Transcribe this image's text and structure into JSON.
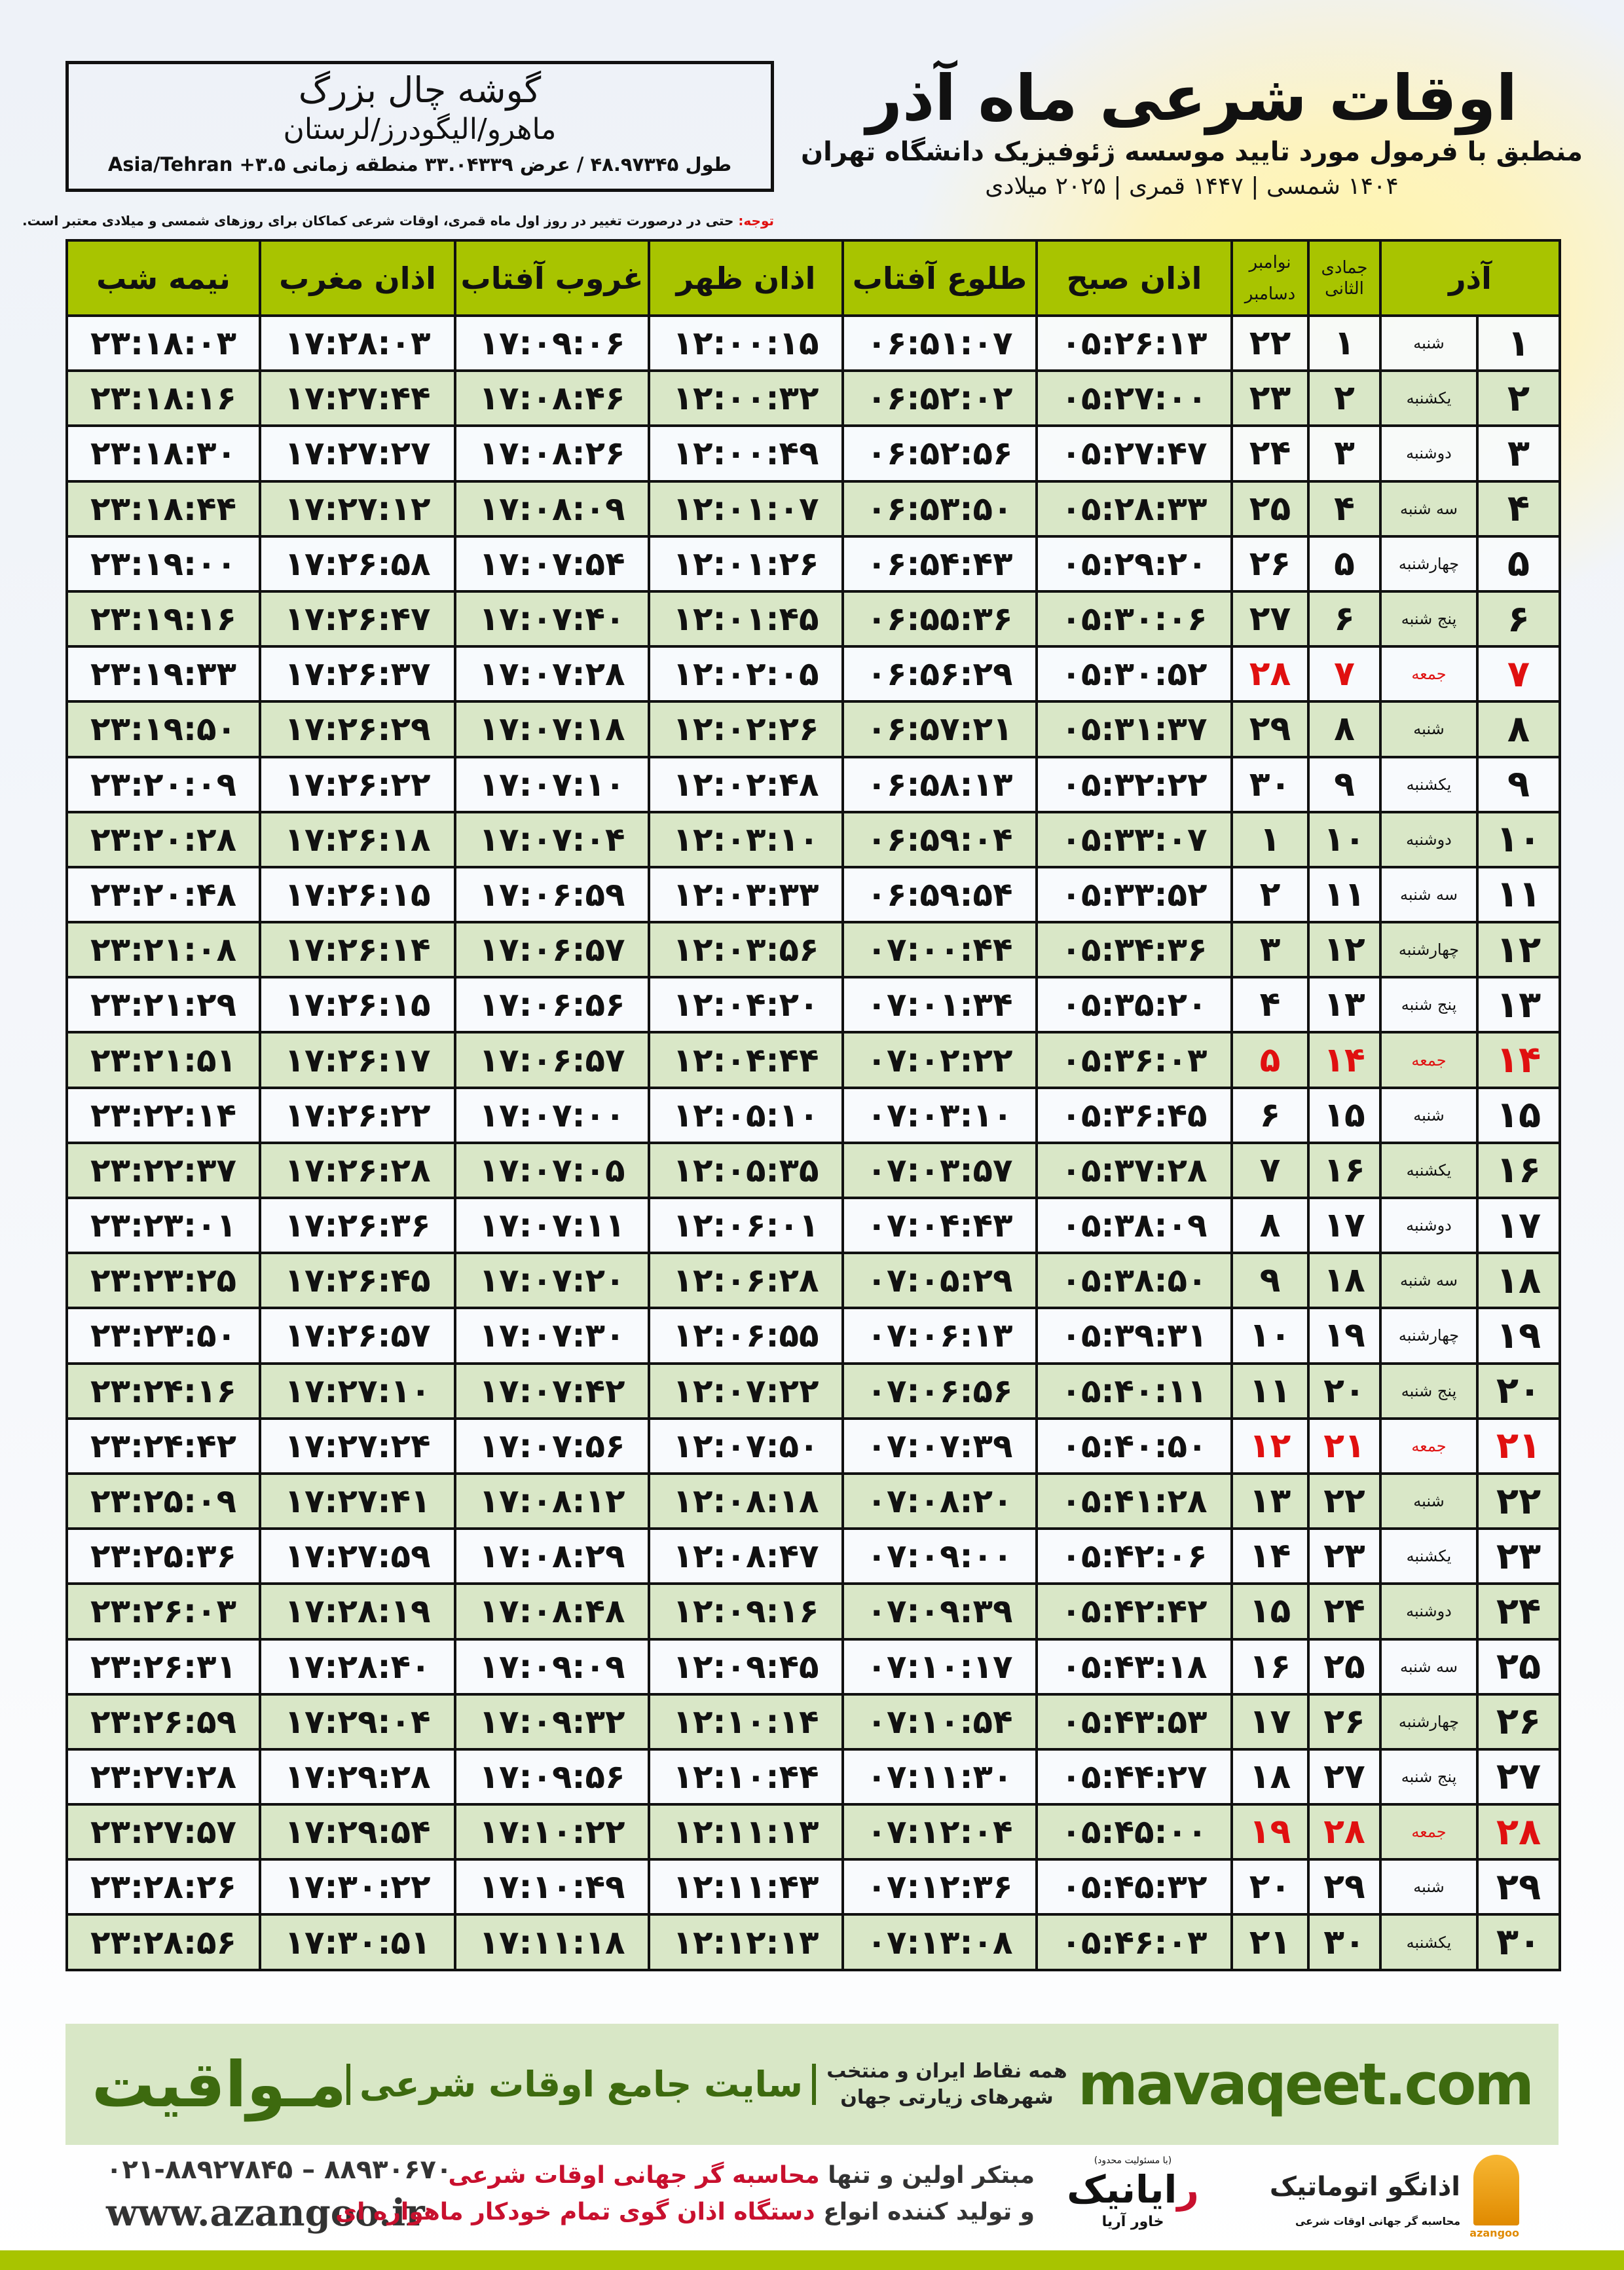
{
  "location": {
    "name": "گوشه چال بزرگ",
    "path": "ماهرو/الیگودرز/لرستان",
    "coords": "طول ۴۸.۹۷۳۴۵ / عرض ۳۳.۰۴۳۳۹ منطقه زمانی ۳.۵+ Asia/Tehran"
  },
  "header": {
    "title": "اوقات شرعی ماه آذر",
    "subtitle": "منطبق با فرمول مورد تایید موسسه ژئوفیزیک دانشگاه تهران",
    "years": "۱۴۰۴ شمسی | ۱۴۴۷ قمری | ۲۰۲۵ میلادی"
  },
  "note": {
    "label": "توجه:",
    "text": " حتی در درصورت تغییر در روز اول ماه قمری، اوقات شرعی کماکان برای روزهای شمسی و میلادی معتبر است."
  },
  "columns": {
    "month": "آذر",
    "hijri": "جمادی الثانی",
    "greg_top": "نوامبر",
    "greg_bottom": "دسامبر",
    "fajr": "اذان صبح",
    "sunrise": "طلوع آفتاب",
    "dhuhr": "اذان ظهر",
    "sunset": "غروب آفتاب",
    "maghrib": "اذان مغرب",
    "midnight": "نیمه شب"
  },
  "colors": {
    "header_green": "#a8c400",
    "row_green": "#d9e7c7",
    "holiday_red": "#e01010",
    "brand_green": "#3d6a0f"
  },
  "rows": [
    {
      "day": "۱",
      "weekday": "شنبه",
      "hijri": "۱",
      "greg": "۲۲",
      "fajr": "۰۵:۲۶:۱۳",
      "sunrise": "۰۶:۵۱:۰۷",
      "dhuhr": "۱۲:۰۰:۱۵",
      "sunset": "۱۷:۰۹:۰۶",
      "maghrib": "۱۷:۲۸:۰۳",
      "midnight": "۲۳:۱۸:۰۳"
    },
    {
      "day": "۲",
      "weekday": "یکشنبه",
      "hijri": "۲",
      "greg": "۲۳",
      "fajr": "۰۵:۲۷:۰۰",
      "sunrise": "۰۶:۵۲:۰۲",
      "dhuhr": "۱۲:۰۰:۳۲",
      "sunset": "۱۷:۰۸:۴۶",
      "maghrib": "۱۷:۲۷:۴۴",
      "midnight": "۲۳:۱۸:۱۶"
    },
    {
      "day": "۳",
      "weekday": "دوشنبه",
      "hijri": "۳",
      "greg": "۲۴",
      "fajr": "۰۵:۲۷:۴۷",
      "sunrise": "۰۶:۵۲:۵۶",
      "dhuhr": "۱۲:۰۰:۴۹",
      "sunset": "۱۷:۰۸:۲۶",
      "maghrib": "۱۷:۲۷:۲۷",
      "midnight": "۲۳:۱۸:۳۰"
    },
    {
      "day": "۴",
      "weekday": "سه شنبه",
      "hijri": "۴",
      "greg": "۲۵",
      "fajr": "۰۵:۲۸:۳۳",
      "sunrise": "۰۶:۵۳:۵۰",
      "dhuhr": "۱۲:۰۱:۰۷",
      "sunset": "۱۷:۰۸:۰۹",
      "maghrib": "۱۷:۲۷:۱۲",
      "midnight": "۲۳:۱۸:۴۴"
    },
    {
      "day": "۵",
      "weekday": "چهارشنبه",
      "hijri": "۵",
      "greg": "۲۶",
      "fajr": "۰۵:۲۹:۲۰",
      "sunrise": "۰۶:۵۴:۴۳",
      "dhuhr": "۱۲:۰۱:۲۶",
      "sunset": "۱۷:۰۷:۵۴",
      "maghrib": "۱۷:۲۶:۵۸",
      "midnight": "۲۳:۱۹:۰۰"
    },
    {
      "day": "۶",
      "weekday": "پنج شنبه",
      "hijri": "۶",
      "greg": "۲۷",
      "fajr": "۰۵:۳۰:۰۶",
      "sunrise": "۰۶:۵۵:۳۶",
      "dhuhr": "۱۲:۰۱:۴۵",
      "sunset": "۱۷:۰۷:۴۰",
      "maghrib": "۱۷:۲۶:۴۷",
      "midnight": "۲۳:۱۹:۱۶"
    },
    {
      "day": "۷",
      "weekday": "جمعه",
      "hijri": "۷",
      "greg": "۲۸",
      "fajr": "۰۵:۳۰:۵۲",
      "sunrise": "۰۶:۵۶:۲۹",
      "dhuhr": "۱۲:۰۲:۰۵",
      "sunset": "۱۷:۰۷:۲۸",
      "maghrib": "۱۷:۲۶:۳۷",
      "midnight": "۲۳:۱۹:۳۳",
      "holiday": true
    },
    {
      "day": "۸",
      "weekday": "شنبه",
      "hijri": "۸",
      "greg": "۲۹",
      "fajr": "۰۵:۳۱:۳۷",
      "sunrise": "۰۶:۵۷:۲۱",
      "dhuhr": "۱۲:۰۲:۲۶",
      "sunset": "۱۷:۰۷:۱۸",
      "maghrib": "۱۷:۲۶:۲۹",
      "midnight": "۲۳:۱۹:۵۰"
    },
    {
      "day": "۹",
      "weekday": "یکشنبه",
      "hijri": "۹",
      "greg": "۳۰",
      "fajr": "۰۵:۳۲:۲۲",
      "sunrise": "۰۶:۵۸:۱۳",
      "dhuhr": "۱۲:۰۲:۴۸",
      "sunset": "۱۷:۰۷:۱۰",
      "maghrib": "۱۷:۲۶:۲۲",
      "midnight": "۲۳:۲۰:۰۹"
    },
    {
      "day": "۱۰",
      "weekday": "دوشنبه",
      "hijri": "۱۰",
      "greg": "۱",
      "fajr": "۰۵:۳۳:۰۷",
      "sunrise": "۰۶:۵۹:۰۴",
      "dhuhr": "۱۲:۰۳:۱۰",
      "sunset": "۱۷:۰۷:۰۴",
      "maghrib": "۱۷:۲۶:۱۸",
      "midnight": "۲۳:۲۰:۲۸"
    },
    {
      "day": "۱۱",
      "weekday": "سه شنبه",
      "hijri": "۱۱",
      "greg": "۲",
      "fajr": "۰۵:۳۳:۵۲",
      "sunrise": "۰۶:۵۹:۵۴",
      "dhuhr": "۱۲:۰۳:۳۳",
      "sunset": "۱۷:۰۶:۵۹",
      "maghrib": "۱۷:۲۶:۱۵",
      "midnight": "۲۳:۲۰:۴۸"
    },
    {
      "day": "۱۲",
      "weekday": "چهارشنبه",
      "hijri": "۱۲",
      "greg": "۳",
      "fajr": "۰۵:۳۴:۳۶",
      "sunrise": "۰۷:۰۰:۴۴",
      "dhuhr": "۱۲:۰۳:۵۶",
      "sunset": "۱۷:۰۶:۵۷",
      "maghrib": "۱۷:۲۶:۱۴",
      "midnight": "۲۳:۲۱:۰۸"
    },
    {
      "day": "۱۳",
      "weekday": "پنج شنبه",
      "hijri": "۱۳",
      "greg": "۴",
      "fajr": "۰۵:۳۵:۲۰",
      "sunrise": "۰۷:۰۱:۳۴",
      "dhuhr": "۱۲:۰۴:۲۰",
      "sunset": "۱۷:۰۶:۵۶",
      "maghrib": "۱۷:۲۶:۱۵",
      "midnight": "۲۳:۲۱:۲۹"
    },
    {
      "day": "۱۴",
      "weekday": "جمعه",
      "hijri": "۱۴",
      "greg": "۵",
      "fajr": "۰۵:۳۶:۰۳",
      "sunrise": "۰۷:۰۲:۲۲",
      "dhuhr": "۱۲:۰۴:۴۴",
      "sunset": "۱۷:۰۶:۵۷",
      "maghrib": "۱۷:۲۶:۱۷",
      "midnight": "۲۳:۲۱:۵۱",
      "holiday": true
    },
    {
      "day": "۱۵",
      "weekday": "شنبه",
      "hijri": "۱۵",
      "greg": "۶",
      "fajr": "۰۵:۳۶:۴۵",
      "sunrise": "۰۷:۰۳:۱۰",
      "dhuhr": "۱۲:۰۵:۱۰",
      "sunset": "۱۷:۰۷:۰۰",
      "maghrib": "۱۷:۲۶:۲۲",
      "midnight": "۲۳:۲۲:۱۴"
    },
    {
      "day": "۱۶",
      "weekday": "یکشنبه",
      "hijri": "۱۶",
      "greg": "۷",
      "fajr": "۰۵:۳۷:۲۸",
      "sunrise": "۰۷:۰۳:۵۷",
      "dhuhr": "۱۲:۰۵:۳۵",
      "sunset": "۱۷:۰۷:۰۵",
      "maghrib": "۱۷:۲۶:۲۸",
      "midnight": "۲۳:۲۲:۳۷"
    },
    {
      "day": "۱۷",
      "weekday": "دوشنبه",
      "hijri": "۱۷",
      "greg": "۸",
      "fajr": "۰۵:۳۸:۰۹",
      "sunrise": "۰۷:۰۴:۴۳",
      "dhuhr": "۱۲:۰۶:۰۱",
      "sunset": "۱۷:۰۷:۱۱",
      "maghrib": "۱۷:۲۶:۳۶",
      "midnight": "۲۳:۲۳:۰۱"
    },
    {
      "day": "۱۸",
      "weekday": "سه شنبه",
      "hijri": "۱۸",
      "greg": "۹",
      "fajr": "۰۵:۳۸:۵۰",
      "sunrise": "۰۷:۰۵:۲۹",
      "dhuhr": "۱۲:۰۶:۲۸",
      "sunset": "۱۷:۰۷:۲۰",
      "maghrib": "۱۷:۲۶:۴۵",
      "midnight": "۲۳:۲۳:۲۵"
    },
    {
      "day": "۱۹",
      "weekday": "چهارشنبه",
      "hijri": "۱۹",
      "greg": "۱۰",
      "fajr": "۰۵:۳۹:۳۱",
      "sunrise": "۰۷:۰۶:۱۳",
      "dhuhr": "۱۲:۰۶:۵۵",
      "sunset": "۱۷:۰۷:۳۰",
      "maghrib": "۱۷:۲۶:۵۷",
      "midnight": "۲۳:۲۳:۵۰"
    },
    {
      "day": "۲۰",
      "weekday": "پنج شنبه",
      "hijri": "۲۰",
      "greg": "۱۱",
      "fajr": "۰۵:۴۰:۱۱",
      "sunrise": "۰۷:۰۶:۵۶",
      "dhuhr": "۱۲:۰۷:۲۲",
      "sunset": "۱۷:۰۷:۴۲",
      "maghrib": "۱۷:۲۷:۱۰",
      "midnight": "۲۳:۲۴:۱۶"
    },
    {
      "day": "۲۱",
      "weekday": "جمعه",
      "hijri": "۲۱",
      "greg": "۱۲",
      "fajr": "۰۵:۴۰:۵۰",
      "sunrise": "۰۷:۰۷:۳۹",
      "dhuhr": "۱۲:۰۷:۵۰",
      "sunset": "۱۷:۰۷:۵۶",
      "maghrib": "۱۷:۲۷:۲۴",
      "midnight": "۲۳:۲۴:۴۲",
      "holiday": true
    },
    {
      "day": "۲۲",
      "weekday": "شنبه",
      "hijri": "۲۲",
      "greg": "۱۳",
      "fajr": "۰۵:۴۱:۲۸",
      "sunrise": "۰۷:۰۸:۲۰",
      "dhuhr": "۱۲:۰۸:۱۸",
      "sunset": "۱۷:۰۸:۱۲",
      "maghrib": "۱۷:۲۷:۴۱",
      "midnight": "۲۳:۲۵:۰۹"
    },
    {
      "day": "۲۳",
      "weekday": "یکشنبه",
      "hijri": "۲۳",
      "greg": "۱۴",
      "fajr": "۰۵:۴۲:۰۶",
      "sunrise": "۰۷:۰۹:۰۰",
      "dhuhr": "۱۲:۰۸:۴۷",
      "sunset": "۱۷:۰۸:۲۹",
      "maghrib": "۱۷:۲۷:۵۹",
      "midnight": "۲۳:۲۵:۳۶"
    },
    {
      "day": "۲۴",
      "weekday": "دوشنبه",
      "hijri": "۲۴",
      "greg": "۱۵",
      "fajr": "۰۵:۴۲:۴۲",
      "sunrise": "۰۷:۰۹:۳۹",
      "dhuhr": "۱۲:۰۹:۱۶",
      "sunset": "۱۷:۰۸:۴۸",
      "maghrib": "۱۷:۲۸:۱۹",
      "midnight": "۲۳:۲۶:۰۳"
    },
    {
      "day": "۲۵",
      "weekday": "سه شنبه",
      "hijri": "۲۵",
      "greg": "۱۶",
      "fajr": "۰۵:۴۳:۱۸",
      "sunrise": "۰۷:۱۰:۱۷",
      "dhuhr": "۱۲:۰۹:۴۵",
      "sunset": "۱۷:۰۹:۰۹",
      "maghrib": "۱۷:۲۸:۴۰",
      "midnight": "۲۳:۲۶:۳۱"
    },
    {
      "day": "۲۶",
      "weekday": "چهارشنبه",
      "hijri": "۲۶",
      "greg": "۱۷",
      "fajr": "۰۵:۴۳:۵۳",
      "sunrise": "۰۷:۱۰:۵۴",
      "dhuhr": "۱۲:۱۰:۱۴",
      "sunset": "۱۷:۰۹:۳۲",
      "maghrib": "۱۷:۲۹:۰۴",
      "midnight": "۲۳:۲۶:۵۹"
    },
    {
      "day": "۲۷",
      "weekday": "پنج شنبه",
      "hijri": "۲۷",
      "greg": "۱۸",
      "fajr": "۰۵:۴۴:۲۷",
      "sunrise": "۰۷:۱۱:۳۰",
      "dhuhr": "۱۲:۱۰:۴۴",
      "sunset": "۱۷:۰۹:۵۶",
      "maghrib": "۱۷:۲۹:۲۸",
      "midnight": "۲۳:۲۷:۲۸"
    },
    {
      "day": "۲۸",
      "weekday": "جمعه",
      "hijri": "۲۸",
      "greg": "۱۹",
      "fajr": "۰۵:۴۵:۰۰",
      "sunrise": "۰۷:۱۲:۰۴",
      "dhuhr": "۱۲:۱۱:۱۳",
      "sunset": "۱۷:۱۰:۲۲",
      "maghrib": "۱۷:۲۹:۵۴",
      "midnight": "۲۳:۲۷:۵۷",
      "holiday": true
    },
    {
      "day": "۲۹",
      "weekday": "شنبه",
      "hijri": "۲۹",
      "greg": "۲۰",
      "fajr": "۰۵:۴۵:۳۲",
      "sunrise": "۰۷:۱۲:۳۶",
      "dhuhr": "۱۲:۱۱:۴۳",
      "sunset": "۱۷:۱۰:۴۹",
      "maghrib": "۱۷:۳۰:۲۲",
      "midnight": "۲۳:۲۸:۲۶"
    },
    {
      "day": "۳۰",
      "weekday": "یکشنبه",
      "hijri": "۳۰",
      "greg": "۲۱",
      "fajr": "۰۵:۴۶:۰۳",
      "sunrise": "۰۷:۱۳:۰۸",
      "dhuhr": "۱۲:۱۲:۱۳",
      "sunset": "۱۷:۱۱:۱۸",
      "maghrib": "۱۷:۳۰:۵۱",
      "midnight": "۲۳:۲۸:۵۶"
    }
  ],
  "banner": {
    "logo": "مـواقیت",
    "slogan": "سایت جامع اوقات شرعی",
    "tagline": "همه نقاط ایران و منتخب شهرهای زیارتی جهان",
    "site": "mavaqeet.com"
  },
  "footer": {
    "phone": "۰۲۱-۸۸۹۲۷۸۴۵ – ۸۸۹۳۰۶۷۰",
    "web": "www.azangoo.ir",
    "line1_a": "مبتکر اولین و تنها ",
    "line1_b": "محاسبه گر جهانی اوقات شرعی",
    "line2_a": "و تولید کننده انواع ",
    "line2_b": "دستگاه اذان گوی تمام خودکار ماهواره ای",
    "rayanik_note": "(با مسئولیت محدود)",
    "rayanik_r": "ر",
    "rayanik_name": "ایانیک",
    "rayanik_sub": "خاور آریا",
    "azangoo_name": "اذانگو اتوماتیک",
    "azangoo_en": "azangoo",
    "azangoo_sub": "محاسبه گر جهانی اوقات شرعی"
  }
}
